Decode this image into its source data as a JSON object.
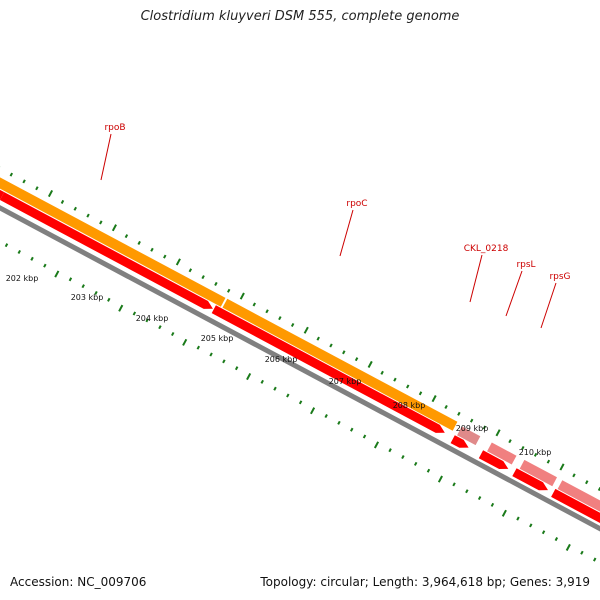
{
  "title": "Clostridium kluyveri DSM 555, complete genome",
  "footer": {
    "accession": "Accession: NC_009706",
    "summary": "Topology: circular; Length: 3,964,618 bp; Genes: 3,919"
  },
  "colors": {
    "gene_strand_orange": "#ff9900",
    "gene_strand_pink": "#f08080",
    "cds_red": "#ff0000",
    "backbone": "#808080",
    "tick_green": "#1a7a1a",
    "label_red": "#cc0000"
  },
  "kbp_labels": [
    "202 kbp",
    "203 kbp",
    "204 kbp",
    "205 kbp",
    "206 kbp",
    "207 kbp",
    "208 kbp",
    "209 kbp",
    "210 kbp"
  ],
  "genes": [
    {
      "name": "rpoB",
      "track": "orange",
      "cds": true
    },
    {
      "name": "rpoC",
      "track": "orange",
      "cds": true
    },
    {
      "name": "CKL_0218",
      "track": "pink",
      "cds": true
    },
    {
      "name": "rpsL",
      "track": "pink",
      "cds": true
    },
    {
      "name": "rpsG",
      "track": "pink",
      "cds": true
    }
  ]
}
